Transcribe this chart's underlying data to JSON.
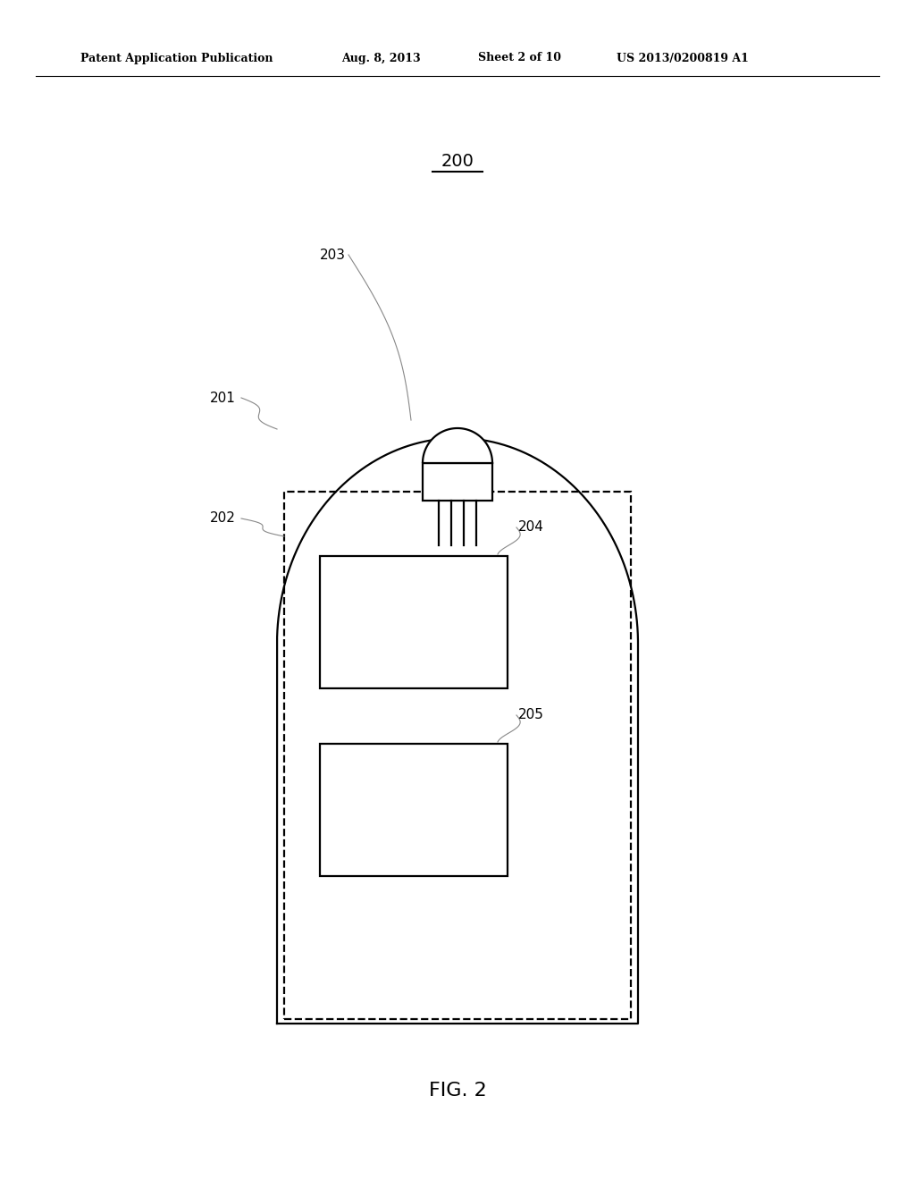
{
  "bg_color": "#ffffff",
  "line_color": "#000000",
  "fig_width": 10.24,
  "fig_height": 13.2,
  "header_text1": "Patent Application Publication",
  "header_text2": "Aug. 8, 2013",
  "header_text3": "Sheet 2 of 10",
  "header_text4": "US 2013/0200819 A1",
  "fig_label": "FIG. 2",
  "label_200": "200",
  "label_201": "201",
  "label_202": "202",
  "label_203": "203",
  "label_204": "204",
  "label_205": "205"
}
